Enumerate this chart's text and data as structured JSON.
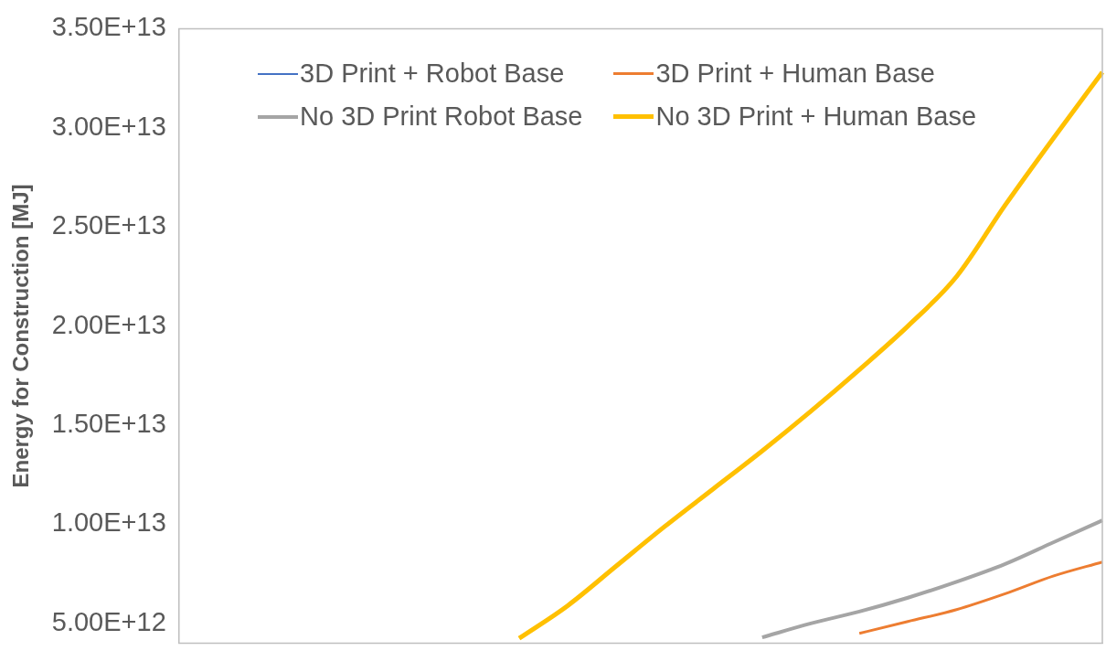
{
  "chart_data": {
    "type": "line",
    "ylabel": "Energy for Construction [MJ]",
    "categories": [
      null,
      null,
      null,
      null,
      null,
      null,
      null,
      null,
      null,
      null,
      null,
      null,
      null,
      null,
      null,
      null,
      null,
      null,
      null,
      null
    ],
    "series": [
      {
        "name": "3D Print + Robot Base",
        "color": "#4472c4",
        "values": [
          null,
          null,
          null,
          null,
          null,
          null,
          null,
          null,
          null,
          null,
          null,
          null,
          null,
          null,
          null,
          null,
          null,
          null,
          null,
          null
        ]
      },
      {
        "name": "3D Print + Human Base",
        "color": "#ed7d31",
        "values": [
          null,
          null,
          null,
          null,
          null,
          null,
          null,
          null,
          null,
          null,
          null,
          null,
          null,
          null,
          4500000000000.0,
          5100000000000.0,
          5700000000000.0,
          6500000000000.0,
          7400000000000.0,
          8100000000000.0
        ]
      },
      {
        "name": "No 3D Print Robot Base",
        "color": "#a5a5a5",
        "values": [
          null,
          null,
          null,
          null,
          null,
          null,
          null,
          null,
          null,
          null,
          null,
          null,
          4300000000000.0,
          5000000000000.0,
          5600000000000.0,
          6300000000000.0,
          7100000000000.0,
          8000000000000.0,
          9100000000000.0,
          10200000000000.0
        ]
      },
      {
        "name": "No 3D Print + Human Base",
        "color": "#ffc000",
        "values": [
          null,
          null,
          null,
          null,
          null,
          null,
          null,
          4250000000000.0,
          5900000000000.0,
          7900000000000.0,
          9900000000000.0,
          11800000000000.0,
          13700000000000.0,
          15700000000000.0,
          17800000000000.0,
          20000000000000.0,
          22500000000000.0,
          26100000000000.0,
          29500000000000.0,
          32800000000000.0
        ]
      }
    ],
    "ylim": [
      4000000000000.0,
      35000000000000.0
    ],
    "yticks": [
      {
        "value": 5000000000000.0,
        "label": "5.00E+12"
      },
      {
        "value": 10000000000000.0,
        "label": "1.00E+13"
      },
      {
        "value": 15000000000000.0,
        "label": "1.50E+13"
      },
      {
        "value": 20000000000000.0,
        "label": "2.00E+13"
      },
      {
        "value": 25000000000000.0,
        "label": "2.50E+13"
      },
      {
        "value": 30000000000000.0,
        "label": "3.00E+13"
      },
      {
        "value": 35000000000000.0,
        "label": "3.50E+13"
      }
    ],
    "grid": false,
    "legend": "top",
    "marker": "none",
    "line_style": "solid",
    "tick_labels": "y"
  }
}
